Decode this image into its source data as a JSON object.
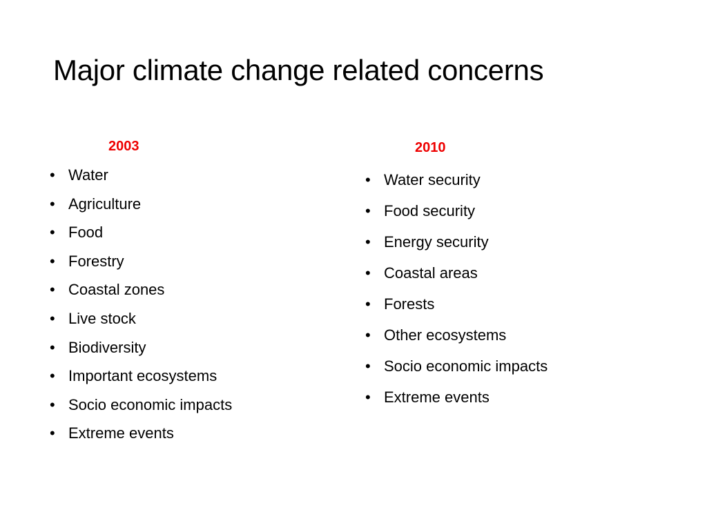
{
  "slide": {
    "title": "Major climate change related concerns"
  },
  "colors": {
    "year_heading": "#ee0000",
    "text": "#000000",
    "background": "#ffffff"
  },
  "columns": [
    {
      "year": "2003",
      "items": [
        "Water",
        "Agriculture",
        "Food",
        "Forestry",
        "Coastal zones",
        "Live stock",
        "Biodiversity",
        "Important ecosystems",
        "Socio economic impacts",
        "Extreme events"
      ]
    },
    {
      "year": "2010",
      "items": [
        "Water security",
        "Food security",
        "Energy security",
        "Coastal areas",
        "Forests",
        "Other ecosystems",
        "Socio economic impacts",
        "Extreme events"
      ]
    }
  ]
}
